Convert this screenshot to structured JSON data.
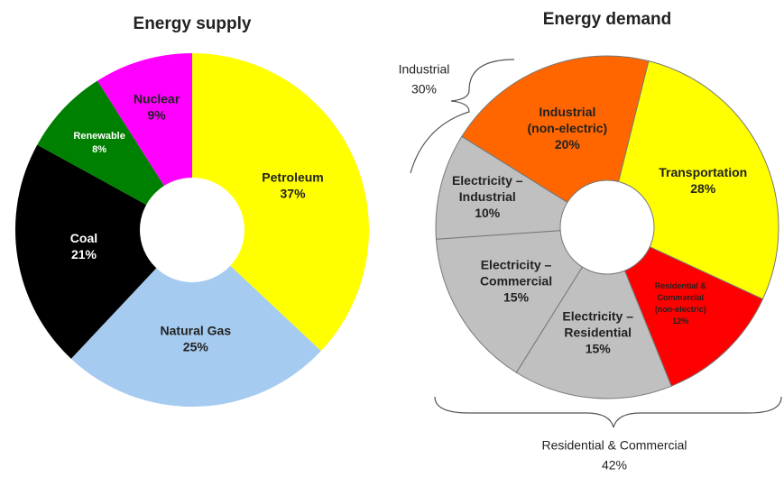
{
  "chart_data": [
    {
      "type": "pie",
      "title": "Energy supply",
      "categories": [
        "Petroleum",
        "Natural Gas",
        "Coal",
        "Renewable",
        "Nuclear"
      ],
      "values": [
        37,
        25,
        21,
        8,
        9
      ],
      "value_labels": [
        "37%",
        "25%",
        "21%",
        "8%",
        "9%"
      ],
      "colors": [
        "#ffff00",
        "#a6cbf0",
        "#000000",
        "#008000",
        "#ff00ff"
      ]
    },
    {
      "type": "pie",
      "title": "Energy demand",
      "categories": [
        "Industrial\n(non-electric)",
        "Transportation",
        "Residential &\nCommercial\n(non-electric)",
        "Electricity –\nResidential",
        "Electricity –\nCommercial",
        "Electricity –\nIndustrial"
      ],
      "values": [
        20,
        28,
        12,
        15,
        15,
        10
      ],
      "value_labels": [
        "20%",
        "28%",
        "12%",
        "15%",
        "15%",
        "10%"
      ],
      "colors": [
        "#ff6600",
        "#ffff00",
        "#ff0000",
        "#c0c0c0",
        "#c0c0c0",
        "#c0c0c0"
      ],
      "annotations": [
        {
          "text": "Industrial",
          "value_label": "30%"
        },
        {
          "text": "Residential & Commercial",
          "value_label": "42%"
        }
      ]
    }
  ]
}
